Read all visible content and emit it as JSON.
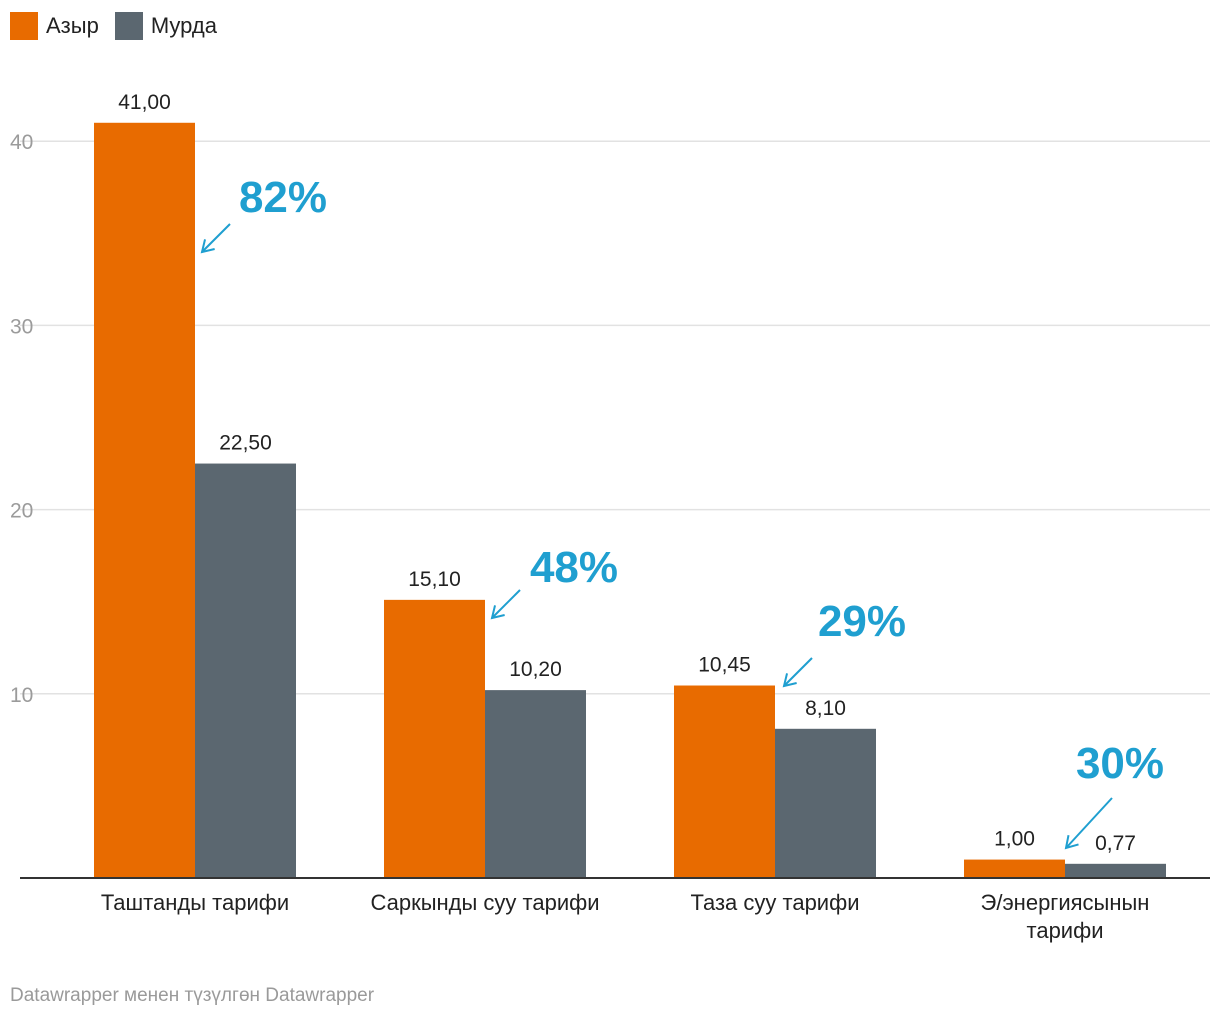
{
  "legend": {
    "items": [
      {
        "label": "Азыр",
        "color": "#e86b00"
      },
      {
        "label": "Мурда",
        "color": "#5b6770"
      }
    ]
  },
  "chart_data": {
    "type": "bar",
    "categories": [
      [
        "Таштанды тарифи"
      ],
      [
        "Саркынды суу тарифи"
      ],
      [
        "Таза суу тарифи"
      ],
      [
        "Э/энергиясынын",
        "тарифи"
      ]
    ],
    "series": [
      {
        "name": "Азыр",
        "values": [
          41.0,
          15.1,
          10.45,
          1.0
        ],
        "labels": [
          "41,00",
          "15,10",
          "10,45",
          "1,00"
        ],
        "color": "#e86b00"
      },
      {
        "name": "Мурда",
        "values": [
          22.5,
          10.2,
          8.1,
          0.77
        ],
        "labels": [
          "22,50",
          "10,20",
          "8,10",
          "0,77"
        ],
        "color": "#5b6770"
      }
    ],
    "annotations": [
      "82%",
      "48%",
      "29%",
      "30%"
    ],
    "annotation_color": "#1f9fd0",
    "yticks": [
      10,
      20,
      30,
      40
    ],
    "ylim": [
      0,
      41
    ],
    "grid": true,
    "xlabel": "",
    "ylabel": ""
  },
  "footer": {
    "credit": "Datawrapper менен түзүлгөн Datawrapper"
  }
}
